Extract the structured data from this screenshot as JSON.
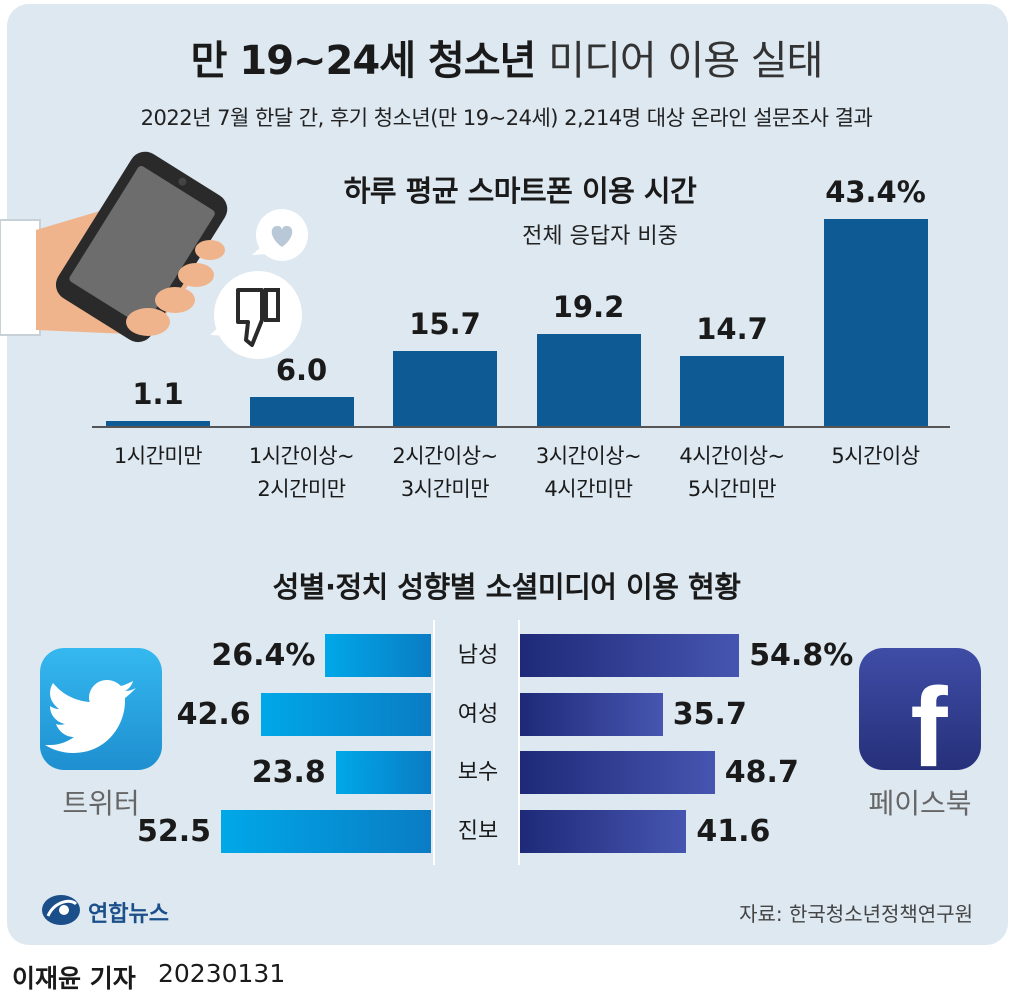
{
  "header": {
    "title_bold": "만 19~24세 청소년",
    "title_light": "미디어 이용 실태",
    "subtitle": "2022년 7월 한달 간, 후기 청소년(만 19~24세) 2,214명 대상 온라인 설문조사 결과"
  },
  "chart_data": [
    {
      "type": "bar",
      "title": "하루 평균 스마트폰 이용 시간",
      "subtitle": "전체 응답자 비중",
      "categories": [
        "1시간미만",
        "1시간이상~ 2시간미만",
        "2시간이상~ 3시간미만",
        "3시간이상~ 4시간미만",
        "4시간이상~ 5시간미만",
        "5시간이상"
      ],
      "category_lines": [
        [
          "1시간미만"
        ],
        [
          "1시간이상~",
          "2시간미만"
        ],
        [
          "2시간이상~",
          "3시간미만"
        ],
        [
          "3시간이상~",
          "4시간미만"
        ],
        [
          "4시간이상~",
          "5시간미만"
        ],
        [
          "5시간이상"
        ]
      ],
      "values": [
        1.1,
        6.0,
        15.7,
        19.2,
        14.7,
        43.4
      ],
      "value_labels": [
        "1.1",
        "6.0",
        "15.7",
        "19.2",
        "14.7",
        "43.4%"
      ],
      "unit": "%",
      "ylim": [
        0,
        43.4
      ],
      "color": "#0d5a94"
    },
    {
      "type": "bar",
      "orientation": "horizontal-diverging",
      "title": "성별·정치 성향별 소셜미디어 이용 현황",
      "categories": [
        "남성",
        "여성",
        "보수",
        "진보"
      ],
      "unit": "%",
      "series": [
        {
          "name": "트위터",
          "values": [
            26.4,
            42.6,
            23.8,
            52.5
          ],
          "value_labels": [
            "26.4%",
            "42.6",
            "23.8",
            "52.5"
          ],
          "color": "#00a8e8"
        },
        {
          "name": "페이스북",
          "values": [
            54.8,
            35.7,
            48.7,
            41.6
          ],
          "value_labels": [
            "54.8%",
            "35.7",
            "48.7",
            "41.6"
          ],
          "color": "#2e3a8c"
        }
      ]
    }
  ],
  "logos": {
    "twitter_label": "트위터",
    "facebook_label": "페이스북",
    "facebook_letter": "f"
  },
  "footer": {
    "brand": "연합뉴스",
    "source": "자료: 한국청소년정책연구원",
    "author": "이재윤 기자",
    "date": "20230131"
  }
}
